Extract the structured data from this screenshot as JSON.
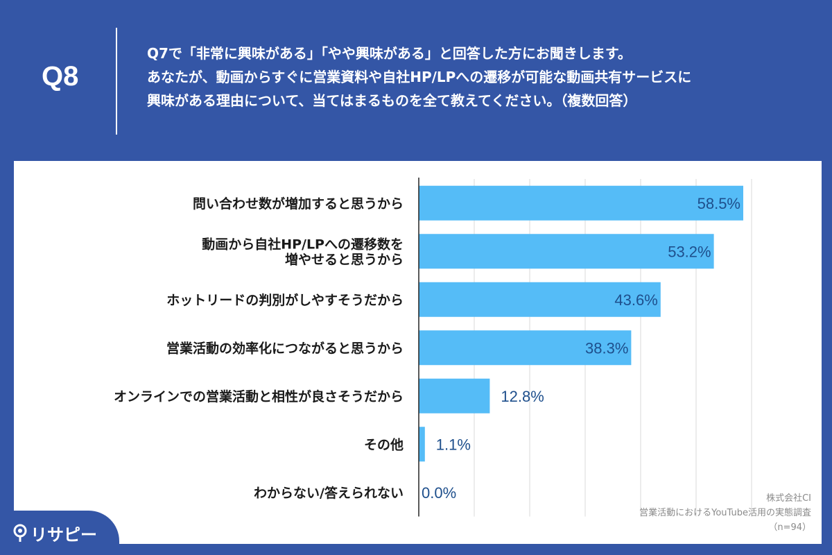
{
  "header": {
    "badge": "Q8",
    "question_lines": [
      "Q7で「非常に興味がある」「やや興味がある」と回答した方にお聞きします。",
      "あなたが、動画からすぐに営業資料や自社HP/LPへの遷移が可能な動画共有サービスに",
      "興味がある理由について、当てはまるものを全て教えてください。（複数回答）"
    ]
  },
  "chart_data": {
    "type": "bar",
    "orientation": "horizontal",
    "categories": [
      [
        "問い合わせ数が増加すると思うから"
      ],
      [
        "動画から自社HP/LPへの遷移数を",
        "増やせると思うから"
      ],
      [
        "ホットリードの判別がしやすそうだから"
      ],
      [
        "営業活動の効率化につながると思うから"
      ],
      [
        "オンラインでの営業活動と相性が良さそうだから"
      ],
      [
        "その他"
      ],
      [
        "わからない/答えられない"
      ]
    ],
    "values": [
      58.5,
      53.2,
      43.6,
      38.3,
      12.8,
      1.1,
      0.0
    ],
    "value_labels": [
      "58.5%",
      "53.2%",
      "43.6%",
      "38.3%",
      "12.8%",
      "1.1%",
      "0.0%"
    ],
    "xlim": [
      0,
      60
    ],
    "grid": true,
    "bar_color": "#55bcf7"
  },
  "source": {
    "company": "株式会社CI",
    "survey": "営業活動におけるYouTube活用の実態調査",
    "n": "（n=94）"
  },
  "logo": {
    "text": "リサピー"
  },
  "colors": {
    "background": "#3456a6",
    "bar": "#55bcf7",
    "value_label": "#1e4f8c"
  }
}
